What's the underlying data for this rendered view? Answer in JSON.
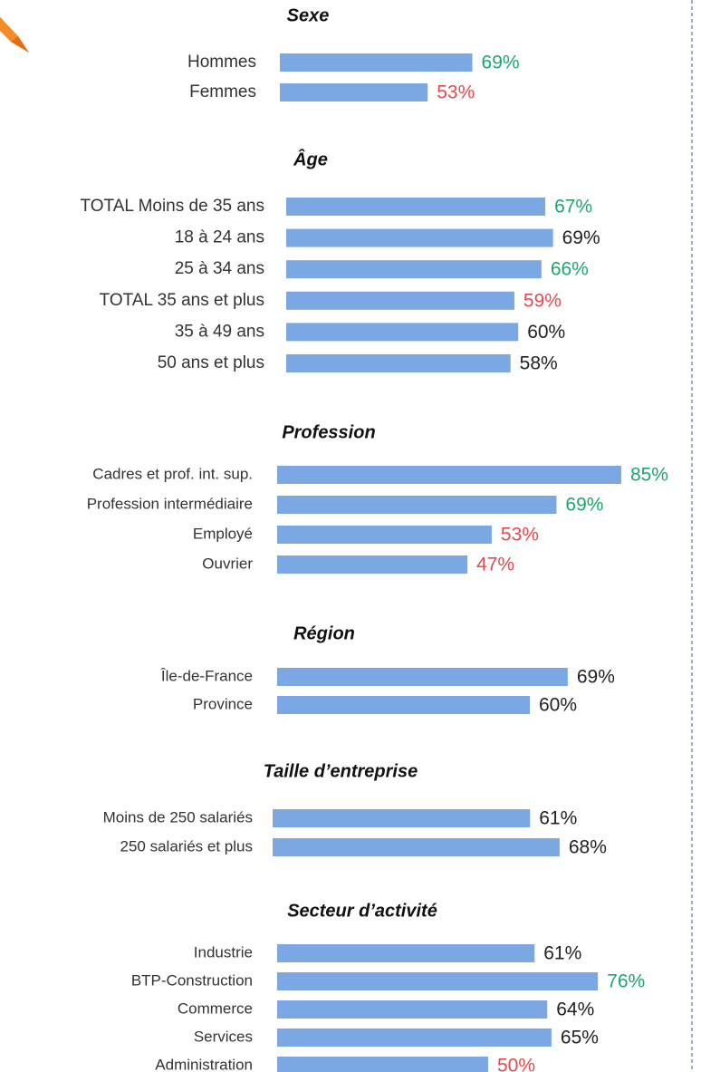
{
  "chart_data": [
    {
      "type": "bar",
      "title": "Sexe",
      "categories": [
        "Hommes",
        "Femmes"
      ],
      "values": [
        69,
        53
      ],
      "value_labels": [
        "69%",
        "53%"
      ],
      "color": "#7ba7e3",
      "label_colors": [
        "#1aa86b",
        "#e5484d"
      ]
    },
    {
      "type": "bar",
      "title": "Âge",
      "categories": [
        "TOTAL Moins de 35 ans",
        "18 à 24 ans",
        "25 à 34 ans",
        "TOTAL 35 ans et plus",
        "35 à 49 ans",
        "50 ans et plus"
      ],
      "values": [
        67,
        69,
        66,
        59,
        60,
        58
      ],
      "value_labels": [
        "67%",
        "69%",
        "66%",
        "59%",
        "60%",
        "58%"
      ],
      "color": "#7ba7e3",
      "label_colors": [
        "#1aa86b",
        "#222222",
        "#1aa86b",
        "#e5484d",
        "#222222",
        "#222222"
      ]
    },
    {
      "type": "bar",
      "title": "Profession",
      "categories": [
        "Cadres et prof. int. sup.",
        "Profession intermédiaire",
        "Employé",
        "Ouvrier"
      ],
      "values": [
        85,
        69,
        53,
        47
      ],
      "value_labels": [
        "85%",
        "69%",
        "53%",
        "47%"
      ],
      "color": "#7ba7e3",
      "label_colors": [
        "#1aa86b",
        "#1aa86b",
        "#e5484d",
        "#e5484d"
      ]
    },
    {
      "type": "bar",
      "title": "Région",
      "categories": [
        "Île-de-France",
        "Province"
      ],
      "values": [
        69,
        60
      ],
      "value_labels": [
        "69%",
        "60%"
      ],
      "color": "#7ba7e3",
      "label_colors": [
        "#222222",
        "#222222"
      ]
    },
    {
      "type": "bar",
      "title": "Taille d’entreprise",
      "categories": [
        "Moins de 250 salariés",
        "250 salariés et plus"
      ],
      "values": [
        61,
        68
      ],
      "value_labels": [
        "61%",
        "68%"
      ],
      "color": "#7ba7e3",
      "label_colors": [
        "#222222",
        "#222222"
      ]
    },
    {
      "type": "bar",
      "title": "Secteur d’activité",
      "categories": [
        "Industrie",
        "BTP-Construction",
        "Commerce",
        "Services",
        "Administration"
      ],
      "values": [
        61,
        76,
        64,
        65,
        50
      ],
      "value_labels": [
        "61%",
        "76%",
        "64%",
        "65%",
        "50%"
      ],
      "color": "#7ba7e3",
      "label_colors": [
        "#222222",
        "#1aa86b",
        "#222222",
        "#222222",
        "#e5484d"
      ]
    }
  ]
}
